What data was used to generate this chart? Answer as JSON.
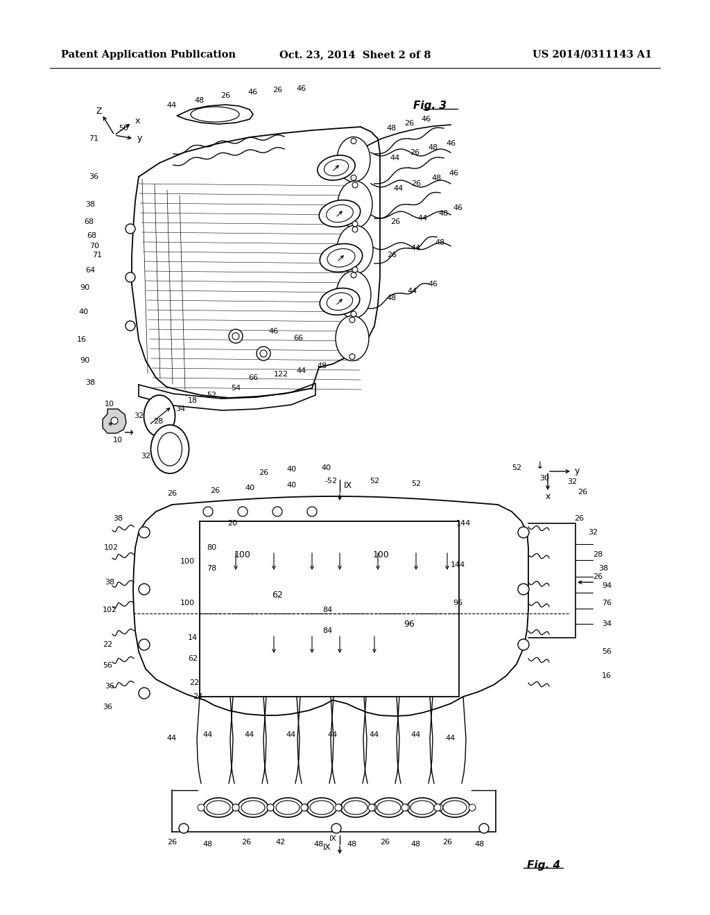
{
  "background_color": "#ffffff",
  "header_left": "Patent Application Publication",
  "header_center": "Oct. 23, 2014  Sheet 2 of 8",
  "header_right": "US 2014/0311143 A1",
  "header_fontsize": 10.5,
  "fig3_label": "Fig. 3",
  "fig4_label": "Fig. 4",
  "line_color": "#000000",
  "text_color": "#000000"
}
